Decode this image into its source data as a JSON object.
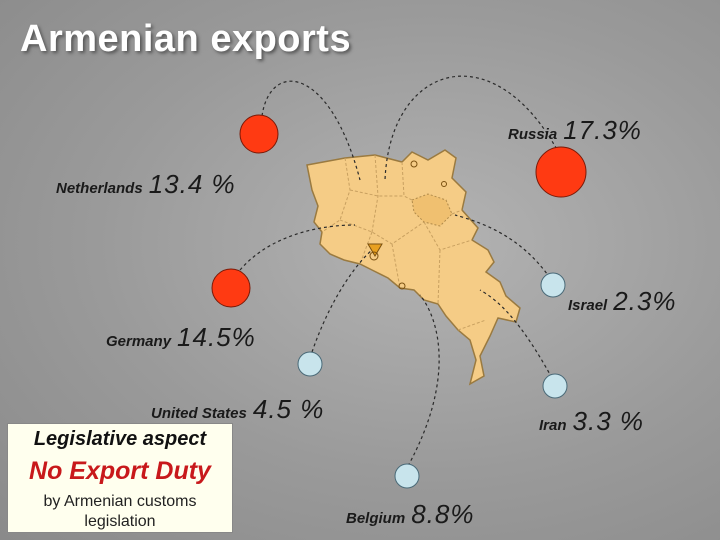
{
  "title": "Armenian exports",
  "colors": {
    "major": "#ff3a12",
    "minor": "#c8e4ec",
    "map": "#f5cc86",
    "line": "#2a2a2a"
  },
  "destinations": [
    {
      "country": "Russia",
      "share": "17.3%",
      "value": 17.3,
      "group": "major"
    },
    {
      "country": "Netherlands",
      "share": "13.4 %",
      "value": 13.4,
      "group": "major"
    },
    {
      "country": "Germany",
      "share": "14.5%",
      "value": 14.5,
      "group": "major"
    },
    {
      "country": "Israel",
      "share": "2.3%",
      "value": 2.3,
      "group": "minor"
    },
    {
      "country": "United States",
      "share": "4.5 %",
      "value": 4.5,
      "group": "minor"
    },
    {
      "country": "Iran",
      "share": "3.3 %",
      "value": 3.3,
      "group": "minor"
    },
    {
      "country": "Belgium",
      "share": "8.8%",
      "value": 8.8,
      "group": "minor"
    }
  ],
  "legislative": {
    "heading": "Legislative aspect",
    "duty": "No Export Duty",
    "note": "by Armenian customs legislation"
  }
}
